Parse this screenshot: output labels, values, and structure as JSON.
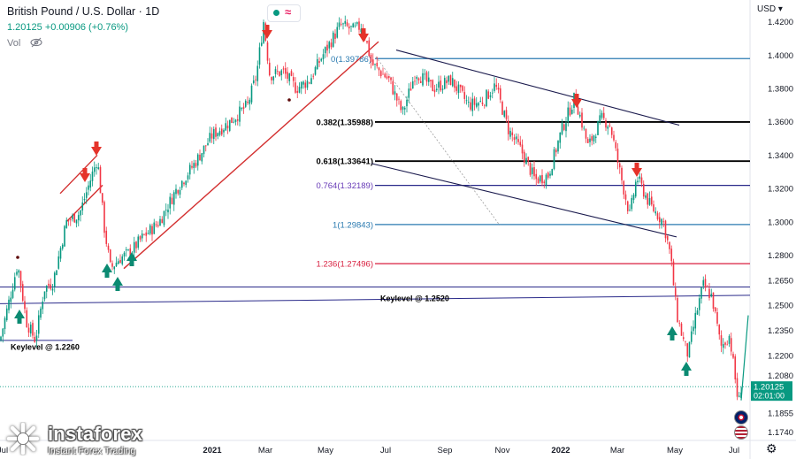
{
  "header": {
    "symbol_label": "British Pound / U.S. Dollar · 1D",
    "quote_line": "1.20125  +0.00906 (+0.76%)",
    "vol_label": "Vol",
    "currency_label": "USD"
  },
  "watermark": {
    "brand": "instaforex",
    "tagline": "Instant Forex Trading"
  },
  "price_tags": {
    "last_price": "1.20125",
    "countdown": "02:01:00"
  },
  "colors": {
    "up": "#089981",
    "down": "#f23645",
    "fib_blue": "#2a7ab0",
    "fib_black": "#000000",
    "fib_navy": "#2a2a8a",
    "fib_red": "#d81f3f",
    "fib_purple": "#673ab7",
    "trend_red": "#d32f2f",
    "channel": "#1a1a4d",
    "arrow_red": "#e5332a",
    "arrow_green": "#0b8a72"
  },
  "chart_data": {
    "type": "candlestick",
    "title": "British Pound / U.S. Dollar · 1D",
    "xlabel": "",
    "ylabel": "",
    "x_ticks": [
      "Jul",
      "2021",
      "Mar",
      "May",
      "Jul",
      "Sep",
      "Nov",
      "2022",
      "Mar",
      "May",
      "Jul"
    ],
    "y_ticks": [
      1.42,
      1.4,
      1.38,
      1.36,
      1.34,
      1.32,
      1.3,
      1.28,
      1.265,
      1.25,
      1.235,
      1.22,
      1.208,
      1.1855,
      1.174
    ],
    "ylim": [
      1.169,
      1.433
    ],
    "grid": false,
    "close_path_points": [
      {
        "x": 0,
        "y": 1.229
      },
      {
        "x": 20,
        "y": 1.275
      },
      {
        "x": 30,
        "y": 1.24
      },
      {
        "x": 40,
        "y": 1.229
      },
      {
        "x": 50,
        "y": 1.26
      },
      {
        "x": 60,
        "y": 1.264
      },
      {
        "x": 75,
        "y": 1.3
      },
      {
        "x": 90,
        "y": 1.305
      },
      {
        "x": 110,
        "y": 1.338
      },
      {
        "x": 118,
        "y": 1.296
      },
      {
        "x": 125,
        "y": 1.272
      },
      {
        "x": 135,
        "y": 1.278
      },
      {
        "x": 148,
        "y": 1.282
      },
      {
        "x": 160,
        "y": 1.29
      },
      {
        "x": 180,
        "y": 1.3
      },
      {
        "x": 200,
        "y": 1.32
      },
      {
        "x": 220,
        "y": 1.335
      },
      {
        "x": 240,
        "y": 1.352
      },
      {
        "x": 260,
        "y": 1.36
      },
      {
        "x": 280,
        "y": 1.37
      },
      {
        "x": 290,
        "y": 1.388
      },
      {
        "x": 298,
        "y": 1.42
      },
      {
        "x": 305,
        "y": 1.388
      },
      {
        "x": 320,
        "y": 1.39
      },
      {
        "x": 335,
        "y": 1.38
      },
      {
        "x": 350,
        "y": 1.385
      },
      {
        "x": 365,
        "y": 1.4
      },
      {
        "x": 385,
        "y": 1.418
      },
      {
        "x": 400,
        "y": 1.415
      },
      {
        "x": 410,
        "y": 1.418
      },
      {
        "x": 420,
        "y": 1.395
      },
      {
        "x": 440,
        "y": 1.385
      },
      {
        "x": 455,
        "y": 1.365
      },
      {
        "x": 470,
        "y": 1.39
      },
      {
        "x": 490,
        "y": 1.38
      },
      {
        "x": 510,
        "y": 1.385
      },
      {
        "x": 530,
        "y": 1.37
      },
      {
        "x": 545,
        "y": 1.372
      },
      {
        "x": 560,
        "y": 1.382
      },
      {
        "x": 575,
        "y": 1.355
      },
      {
        "x": 590,
        "y": 1.342
      },
      {
        "x": 605,
        "y": 1.325
      },
      {
        "x": 620,
        "y": 1.328
      },
      {
        "x": 635,
        "y": 1.355
      },
      {
        "x": 650,
        "y": 1.375
      },
      {
        "x": 665,
        "y": 1.345
      },
      {
        "x": 680,
        "y": 1.362
      },
      {
        "x": 690,
        "y": 1.358
      },
      {
        "x": 700,
        "y": 1.332
      },
      {
        "x": 712,
        "y": 1.304
      },
      {
        "x": 720,
        "y": 1.327
      },
      {
        "x": 735,
        "y": 1.31
      },
      {
        "x": 750,
        "y": 1.3
      },
      {
        "x": 758,
        "y": 1.28
      },
      {
        "x": 765,
        "y": 1.245
      },
      {
        "x": 772,
        "y": 1.23
      },
      {
        "x": 778,
        "y": 1.22
      },
      {
        "x": 785,
        "y": 1.24
      },
      {
        "x": 795,
        "y": 1.262
      },
      {
        "x": 805,
        "y": 1.255
      },
      {
        "x": 815,
        "y": 1.225
      },
      {
        "x": 825,
        "y": 1.232
      },
      {
        "x": 835,
        "y": 1.19
      },
      {
        "x": 838,
        "y": 1.201
      }
    ],
    "fib_levels": [
      {
        "label": "0(1.39786)",
        "value": 1.39786,
        "color": "#2a7ab0",
        "label_color": "#2a7ab0",
        "bold": false,
        "width": 1.3
      },
      {
        "label": "0.382(1.35988)",
        "value": 1.35988,
        "color": "#000000",
        "label_color": "#000000",
        "bold": true,
        "width": 1.8
      },
      {
        "label": "0.618(1.33641)",
        "value": 1.33641,
        "color": "#000000",
        "label_color": "#000000",
        "bold": true,
        "width": 1.8
      },
      {
        "label": "0.764(1.32189)",
        "value": 1.32189,
        "color": "#2a2a8a",
        "label_color": "#673ab7",
        "bold": false,
        "width": 1.2
      },
      {
        "label": "1(1.29843)",
        "value": 1.29843,
        "color": "#2a7ab0",
        "label_color": "#2a7ab0",
        "bold": false,
        "width": 1.3
      },
      {
        "label": "1.236(1.27496)",
        "value": 1.27496,
        "color": "#d81f3f",
        "label_color": "#d81f3f",
        "bold": false,
        "width": 1.3
      }
    ],
    "keylevels": [
      {
        "label": "Keylevel @ 1.2520",
        "value": 1.252
      },
      {
        "label": "Keylevel @ 1.2260",
        "value": 1.226
      }
    ]
  }
}
